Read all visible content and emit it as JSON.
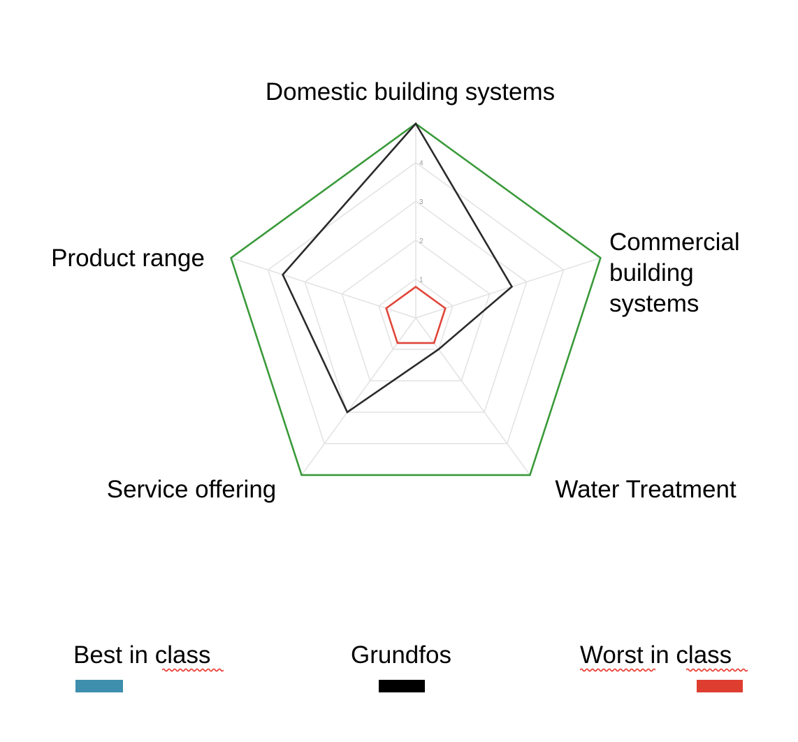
{
  "chart_data": {
    "type": "radar",
    "axes": [
      "Domestic building systems",
      "Commercial building systems",
      "Water Treatment",
      "Service offering",
      "Product range"
    ],
    "axis_label_lines": [
      [
        "Domestic building systems"
      ],
      [
        "Commercial",
        "building",
        "systems"
      ],
      [
        "Water Treatment"
      ],
      [
        "Service offering"
      ],
      [
        "Product range"
      ]
    ],
    "ticks": [
      "1",
      "2",
      "3",
      "4"
    ],
    "rmax": 5,
    "grid": true,
    "series": [
      {
        "name": "Best in class",
        "values": [
          5,
          5,
          5,
          5,
          5
        ],
        "color": "#3a9a3a"
      },
      {
        "name": "Grundfos",
        "values": [
          5,
          2.6,
          1.0,
          3.0,
          3.6
        ],
        "color": "#2a2a2a"
      },
      {
        "name": "Worst in class",
        "values": [
          0.8,
          0.8,
          0.8,
          0.8,
          0.8
        ],
        "color": "#e0463a"
      }
    ],
    "legend": [
      {
        "label": "Best in class",
        "color": "#3e8ead"
      },
      {
        "label": "Grundfos",
        "color": "#000000"
      },
      {
        "label": "Worst in class",
        "color": "#de3e30"
      }
    ]
  }
}
